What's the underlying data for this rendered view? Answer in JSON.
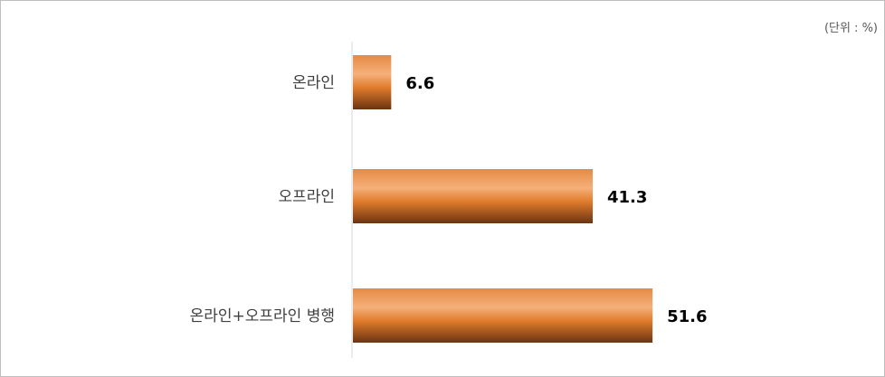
{
  "chart_data": {
    "type": "bar",
    "orientation": "horizontal",
    "unit_note": "(단위 : %)",
    "categories": [
      "온라인",
      "오프라인",
      "온라인+오프라인 병행"
    ],
    "values": [
      6.6,
      41.3,
      51.6
    ],
    "value_labels": [
      "6.6",
      "41.3",
      "51.6"
    ],
    "xlim": [
      0,
      60
    ],
    "grid": false,
    "legend": "none",
    "colors": {
      "bar_light": "#f2a96a",
      "bar_mid": "#e07b2c",
      "bar_dark": "#6b3412"
    }
  }
}
